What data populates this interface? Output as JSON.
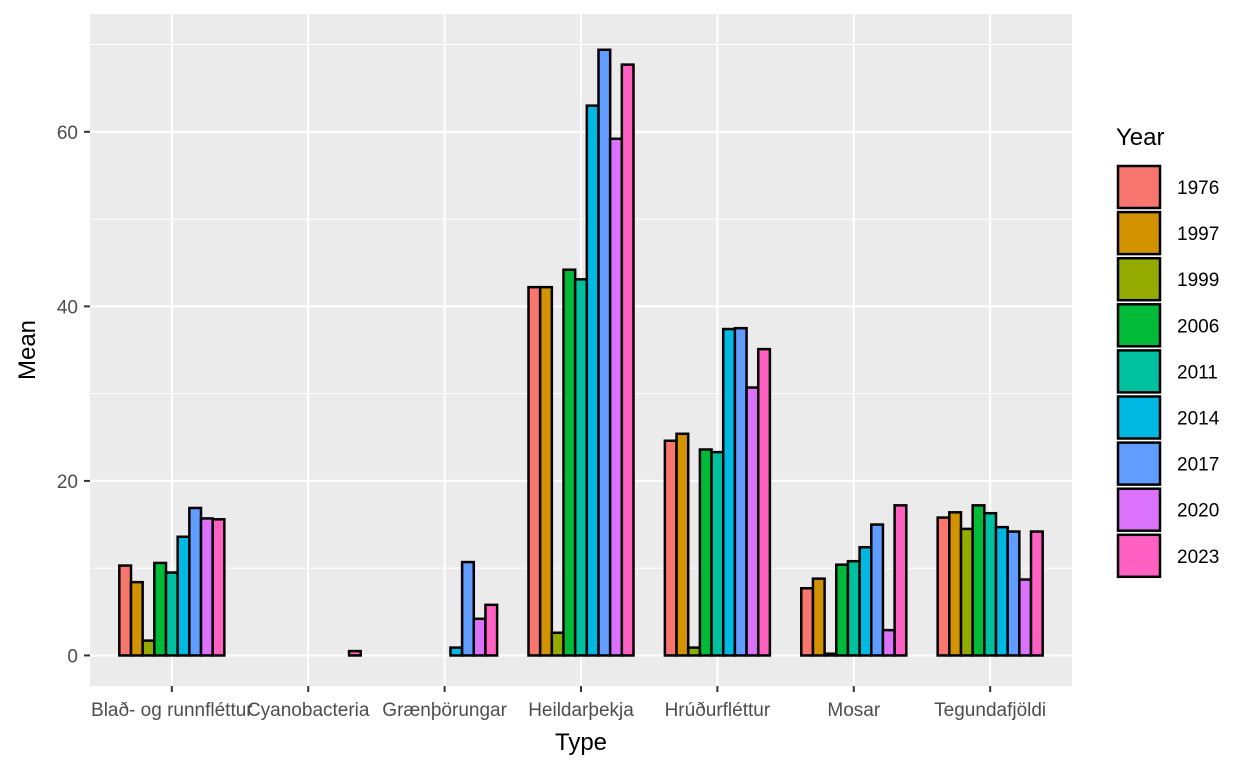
{
  "chart_data": {
    "type": "bar",
    "xlabel": "Type",
    "ylabel": "Mean",
    "ylim": [
      -3.5,
      73.5
    ],
    "yticks": [
      0,
      20,
      40,
      60
    ],
    "grid": true,
    "legend_position": "right",
    "legend_title": "Year",
    "categories": [
      "Blað- og runnfléttur",
      "Cyanobacteria",
      "Grænþörungar",
      "Heildarþekja",
      "Hrúðurfléttur",
      "Mosar",
      "Tegundafjöldi"
    ],
    "series": [
      {
        "name": "1976",
        "color": "#F8766D",
        "values": [
          10.3,
          0.0,
          0.0,
          42.2,
          24.6,
          7.7,
          15.8
        ]
      },
      {
        "name": "1997",
        "color": "#D39200",
        "values": [
          8.4,
          0.0,
          0.0,
          42.2,
          25.4,
          8.8,
          16.4
        ]
      },
      {
        "name": "1999",
        "color": "#93AA00",
        "values": [
          1.7,
          0.0,
          0.0,
          2.6,
          0.9,
          0.2,
          14.5
        ]
      },
      {
        "name": "2006",
        "color": "#00BA38",
        "values": [
          10.6,
          0.0,
          0.0,
          44.2,
          23.6,
          10.4,
          17.2
        ]
      },
      {
        "name": "2011",
        "color": "#00C19F",
        "values": [
          9.5,
          0.0,
          0.0,
          43.1,
          23.3,
          10.8,
          16.3
        ]
      },
      {
        "name": "2014",
        "color": "#00B9E3",
        "values": [
          13.6,
          0.0,
          0.9,
          63.0,
          37.4,
          12.4,
          14.7
        ]
      },
      {
        "name": "2017",
        "color": "#619CFF",
        "values": [
          16.9,
          0.0,
          10.7,
          69.4,
          37.5,
          15.0,
          14.2
        ]
      },
      {
        "name": "2020",
        "color": "#DB72FB",
        "values": [
          15.7,
          0.0,
          4.2,
          59.2,
          30.7,
          2.9,
          8.7
        ]
      },
      {
        "name": "2023",
        "color": "#FF61C3",
        "values": [
          15.6,
          0.5,
          5.8,
          67.7,
          35.1,
          17.2,
          14.2
        ]
      }
    ]
  }
}
